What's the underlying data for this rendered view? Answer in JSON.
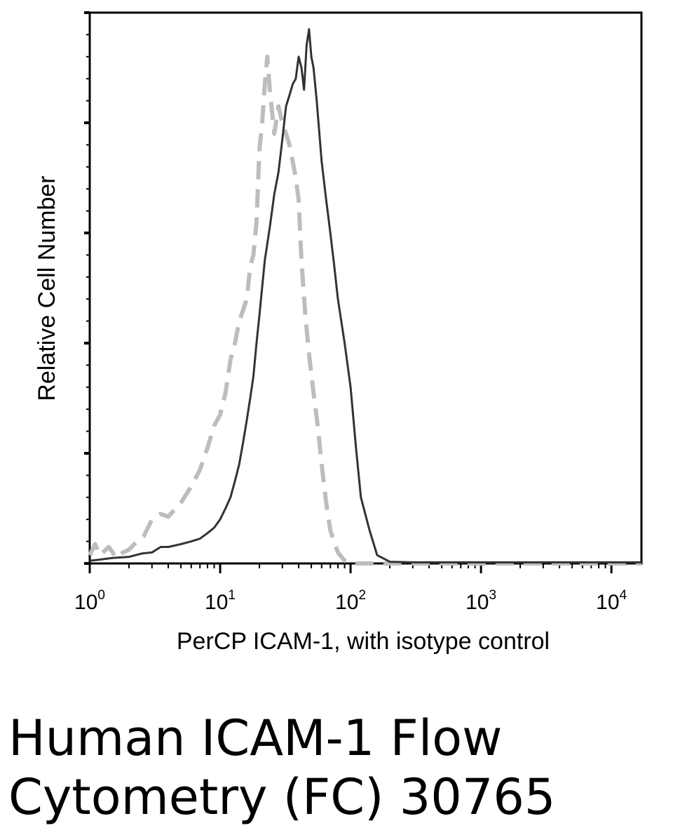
{
  "caption": {
    "line1": "Human ICAM-1 Flow",
    "line2": "Cytometry (FC) 30765"
  },
  "chart_data": {
    "type": "line",
    "xscale": "log",
    "xlim": [
      1,
      17000
    ],
    "ylim": [
      0,
      100
    ],
    "xlabel": "PerCP ICAM-1, with isotype control",
    "ylabel": "Relative Cell Number",
    "x_ticks": [
      {
        "base": "10",
        "exp": "0",
        "value": 1
      },
      {
        "base": "10",
        "exp": "1",
        "value": 10
      },
      {
        "base": "10",
        "exp": "2",
        "value": 100
      },
      {
        "base": "10",
        "exp": "3",
        "value": 1000
      },
      {
        "base": "10",
        "exp": "4",
        "value": 10000
      }
    ],
    "y_major_ticks": [
      0,
      20,
      40,
      60,
      80,
      100
    ],
    "grid": false,
    "legend": "none",
    "series": [
      {
        "style": "dashed",
        "color": "#bdbdbd",
        "x": [
          1,
          1.1,
          1.2,
          1.4,
          1.6,
          1.8,
          2.0,
          2.3,
          2.6,
          3.0,
          3.5,
          4.0,
          5.0,
          6.0,
          7.0,
          8.0,
          9.0,
          10,
          11,
          12,
          13,
          14,
          15,
          16,
          17,
          18,
          19,
          20,
          21,
          22,
          23,
          24,
          25,
          26,
          28,
          30,
          32,
          34,
          36,
          38,
          40,
          42,
          45,
          48,
          52,
          56,
          60,
          65,
          70,
          80,
          90,
          100,
          110,
          120,
          150,
          200,
          300,
          500,
          1000,
          2000,
          5000,
          10000,
          17000
        ],
        "y": [
          1.5,
          3.5,
          1.5,
          3,
          1,
          2,
          2.5,
          4,
          5,
          8,
          9,
          8.5,
          11,
          14,
          17,
          21,
          25,
          27,
          31,
          37,
          40,
          44,
          46,
          48,
          54,
          56,
          62,
          75,
          80,
          87,
          92,
          86,
          82,
          78,
          83,
          80,
          78,
          76,
          73,
          70,
          66,
          55,
          45,
          38,
          31,
          25,
          18,
          11,
          6,
          2,
          0.5,
          0,
          0,
          0,
          0,
          0,
          0,
          0,
          0,
          0,
          0,
          0,
          0
        ]
      },
      {
        "style": "solid",
        "color": "#333333",
        "x": [
          1,
          1.2,
          1.5,
          2,
          2.5,
          3,
          3.5,
          4,
          5,
          6,
          7,
          8,
          9,
          10,
          11,
          12,
          13,
          14,
          15,
          16,
          17,
          18,
          19,
          20,
          22,
          24,
          26,
          28,
          30,
          32,
          34,
          36,
          38,
          40,
          42,
          44,
          46,
          48,
          50,
          52,
          55,
          60,
          65,
          70,
          75,
          80,
          90,
          100,
          110,
          120,
          140,
          160,
          200,
          300,
          500,
          1000,
          2000,
          5000,
          10000,
          17000
        ],
        "y": [
          0.5,
          0.7,
          1,
          1.2,
          1.8,
          2,
          3,
          3,
          3.5,
          4,
          4.5,
          5.5,
          6.5,
          8,
          10,
          12,
          15,
          18,
          22,
          26,
          30,
          34,
          40,
          45,
          55,
          61,
          67,
          71,
          77,
          83,
          85,
          87,
          88,
          92,
          90,
          86,
          94,
          97,
          92,
          90,
          84,
          73,
          66,
          60,
          54,
          48,
          40,
          32,
          21,
          12,
          6,
          1.5,
          0.3,
          0.2,
          0.2,
          0.2,
          0.2,
          0.2,
          0.2,
          0.2
        ]
      }
    ]
  }
}
